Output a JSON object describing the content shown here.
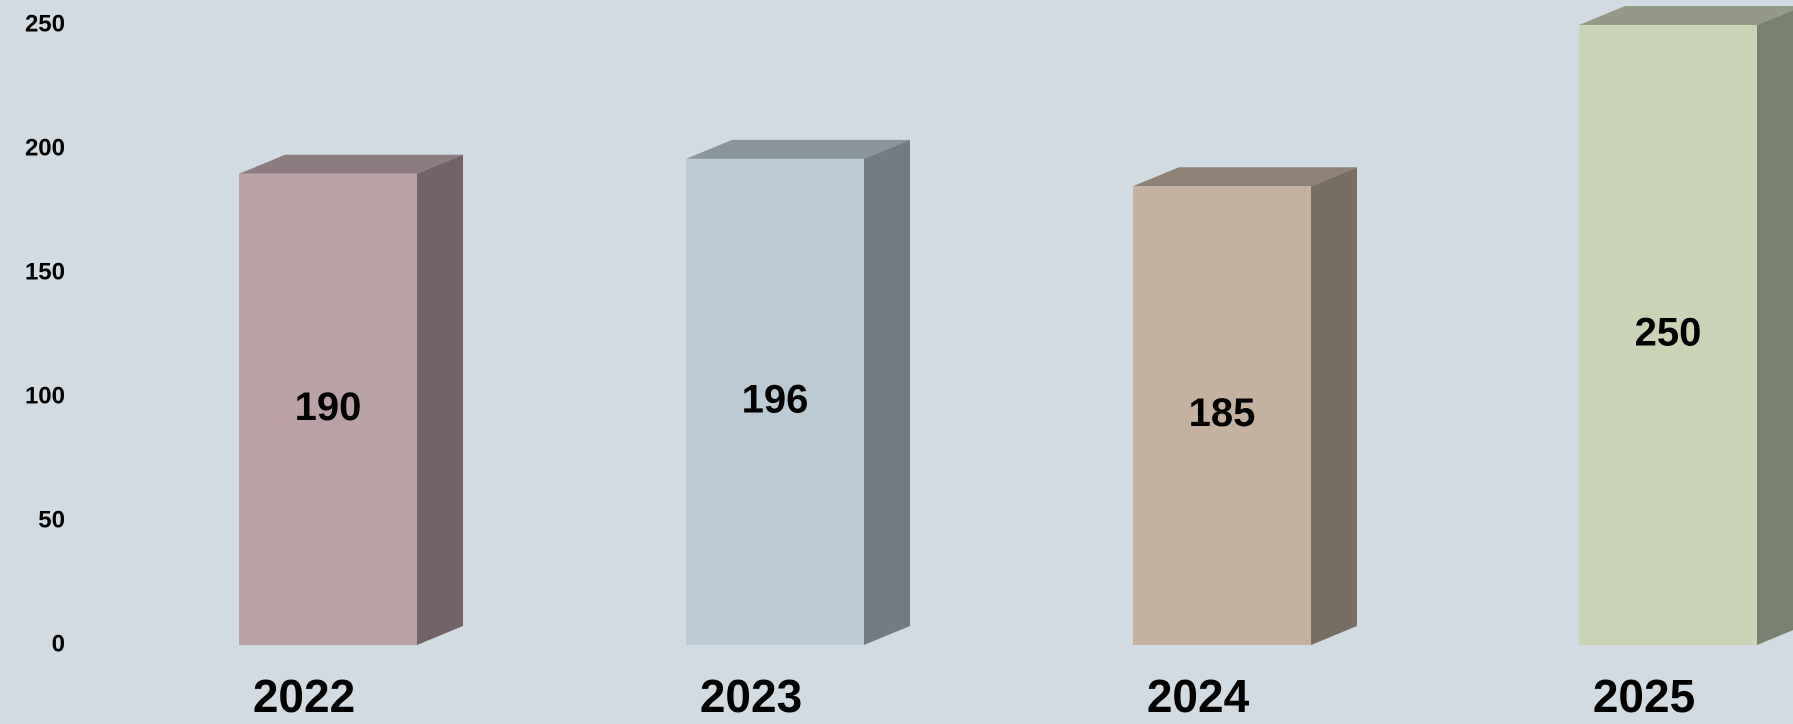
{
  "chart_data": {
    "type": "bar",
    "categories": [
      "2022",
      "2023",
      "2024",
      "2025"
    ],
    "values": [
      190,
      196,
      185,
      250
    ],
    "data_labels": [
      "190",
      "196",
      "185",
      "250"
    ],
    "yticks": [
      "0",
      "50",
      "100",
      "150",
      "200",
      "250"
    ],
    "ylim": [
      0,
      250
    ],
    "title": "",
    "xlabel": "",
    "ylabel": "",
    "grid": false,
    "legend": "none",
    "style": "3d-columns",
    "colors": {
      "front": [
        "#b9a1a6",
        "#bccad3",
        "#c4b1a0",
        "#cbd3b6"
      ],
      "side": [
        "#736368",
        "#737b83",
        "#776d61",
        "#7b8170"
      ],
      "top": [
        "#8c7c80",
        "#8a959e",
        "#8e8276",
        "#959a88"
      ],
      "background": "#d2dae2"
    }
  }
}
